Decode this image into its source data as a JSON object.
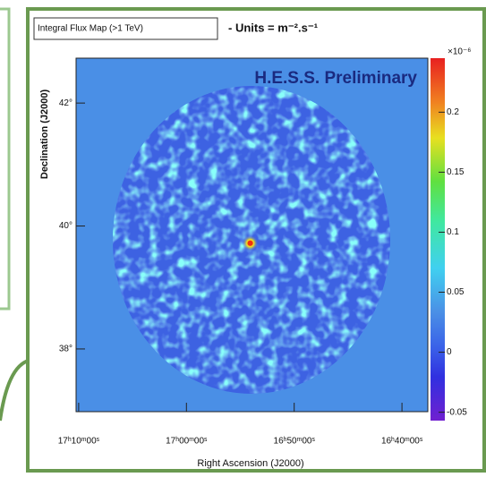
{
  "chart_data": {
    "type": "skymap",
    "title": "Integral Flux Map (>1 TeV)",
    "subtitle": "- Units = m⁻².s⁻¹",
    "annotation": "H.E.S.S. Preliminary",
    "x_label": "Right Ascension (J2000)",
    "y_label": "Declination (J2000)",
    "colorbar_multiplier": "×10⁻⁶",
    "xlim": [
      257.56,
      249.4
    ],
    "xticks": [
      {
        "value": 257.5,
        "label": "17ʰ10ᵐ00ˢ"
      },
      {
        "value": 255,
        "label": "17ʰ00ᵐ00ˢ"
      },
      {
        "value": 252.5,
        "label": "16ʰ50ᵐ00ˢ"
      },
      {
        "value": 250,
        "label": "16ʰ40ᵐ00ˢ"
      }
    ],
    "ylim": [
      36.98,
      42.73
    ],
    "yticks": [
      {
        "value": 42,
        "label": "42°"
      },
      {
        "value": 40,
        "label": "40°"
      },
      {
        "value": 38,
        "label": "38°"
      }
    ],
    "zlim": [
      -0.057,
      0.245
    ],
    "zticks": [
      -0.05,
      0,
      0.05,
      0.1,
      0.15,
      0.2
    ],
    "sources": [
      {
        "x": 253.52,
        "y": 39.72,
        "value": 0.2,
        "color": "#f03010"
      }
    ]
  }
}
